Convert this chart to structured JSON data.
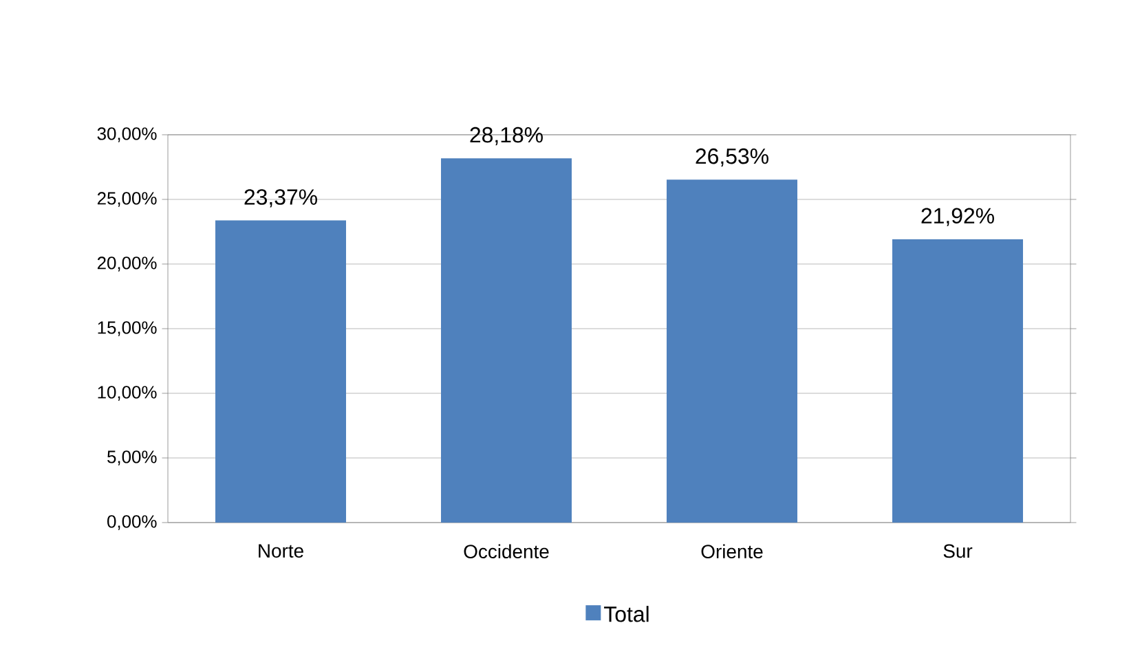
{
  "chart_data": {
    "type": "bar",
    "categories": [
      "Norte",
      "Occidente",
      "Oriente",
      "Sur"
    ],
    "series": [
      {
        "name": "Total",
        "color": "#4f81bd",
        "values": [
          23.37,
          28.18,
          26.53,
          21.92
        ],
        "value_labels": [
          "23,37%",
          "28,18%",
          "26,53%",
          "21,92%"
        ]
      }
    ],
    "ylim": [
      0,
      30
    ],
    "yticks": [
      {
        "value": 0,
        "label": "0,00%"
      },
      {
        "value": 5,
        "label": "5,00%"
      },
      {
        "value": 10,
        "label": "10,00%"
      },
      {
        "value": 15,
        "label": "15,00%"
      },
      {
        "value": 20,
        "label": "20,00%"
      },
      {
        "value": 25,
        "label": "25,00%"
      },
      {
        "value": 30,
        "label": "30,00%"
      }
    ],
    "grid": "y",
    "legend": "bottom"
  }
}
